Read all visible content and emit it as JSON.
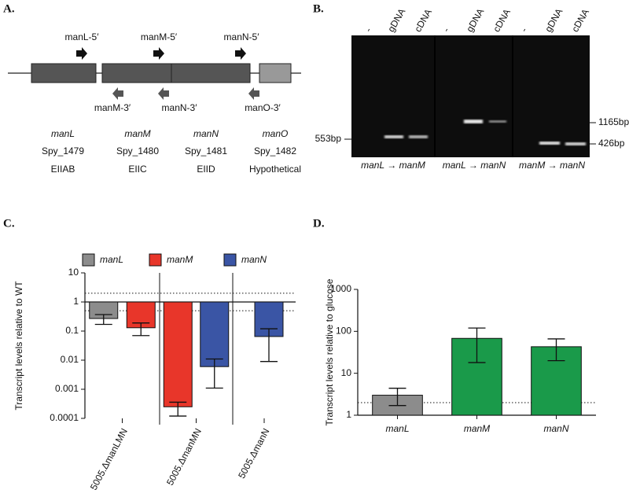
{
  "panel_labels": [
    "A.",
    "B.",
    "C.",
    "D."
  ],
  "panel_a": {
    "primers_forward": [
      "manL-5′",
      "manM-5′",
      "manN-5′"
    ],
    "primers_reverse": [
      "manM-3′",
      "manN-3′",
      "manO-3′"
    ],
    "genes": [
      {
        "name": "manL",
        "locus": "Spy_1479",
        "product": "EIIAB"
      },
      {
        "name": "manM",
        "locus": "Spy_1480",
        "product": "EIIC"
      },
      {
        "name": "manN",
        "locus": "Spy_1481",
        "product": "EIID"
      },
      {
        "name": "manO",
        "locus": "Spy_1482",
        "product": "Hypothetical"
      }
    ]
  },
  "panel_b": {
    "lanes": [
      "-",
      "gDNA",
      "cDNA",
      "-",
      "gDNA",
      "cDNA",
      "-",
      "gDNA",
      "cDNA"
    ],
    "sizes": [
      "553bp",
      "1165bp",
      "426bp"
    ],
    "pairs": [
      "manL → manM",
      "manL → manN",
      "manM → manN"
    ]
  },
  "chart_data": [
    {
      "type": "bar",
      "y_label": "Transcript levels relative to WT",
      "log_scale": true,
      "categories": [
        "5005.ΔmanLMN",
        "5005.ΔmanMN",
        "5005.ΔmanN"
      ],
      "series": [
        {
          "name": "manL",
          "color": "#8c8c8c",
          "values": [
            0.27,
            null,
            null
          ],
          "error_range": [
            [
              0.17,
              0.37
            ],
            null,
            null
          ]
        },
        {
          "name": "manM",
          "color": "#e8362a",
          "values": [
            0.13,
            0.00025,
            null
          ],
          "error_range": [
            [
              0.07,
              0.19
            ],
            [
              0.00012,
              0.00036
            ],
            null
          ]
        },
        {
          "name": "manN",
          "color": "#3a55a5",
          "values": [
            null,
            0.006,
            0.065
          ],
          "error_range": [
            null,
            [
              0.0011,
              0.011
            ],
            [
              0.009,
              0.12
            ]
          ]
        }
      ],
      "bar_base": 1,
      "reference_lines": [
        {
          "value": 1,
          "style": "solid"
        },
        {
          "value": 2,
          "style": "dotted"
        },
        {
          "value": 0.5,
          "style": "dotted"
        }
      ],
      "ylim": [
        0.0001,
        10
      ],
      "yticks": [
        0.0001,
        0.001,
        0.01,
        0.1,
        1,
        10
      ]
    },
    {
      "type": "bar",
      "y_label": "Transcript levels relative to glucose",
      "log_scale": true,
      "categories": [
        "manL",
        "manM",
        "manN"
      ],
      "values": [
        3.0,
        68,
        43
      ],
      "colors": [
        "#8c8c8c",
        "#1a9a4a",
        "#1a9a4a"
      ],
      "error_range": [
        [
          1.7,
          4.4
        ],
        [
          18,
          120
        ],
        [
          20,
          66
        ]
      ],
      "reference_lines": [
        {
          "value": 2,
          "style": "dotted"
        }
      ],
      "ylim": [
        1,
        1000
      ],
      "yticks": [
        1,
        10,
        100,
        1000
      ]
    }
  ]
}
